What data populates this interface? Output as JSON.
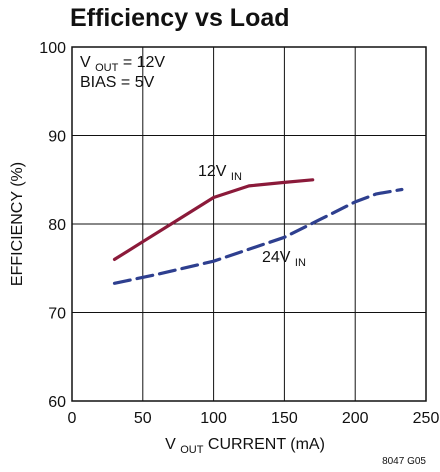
{
  "chart_data": {
    "type": "line",
    "title": "Efficiency vs Load",
    "xlabel": {
      "main": "V",
      "sub": "OUT",
      "rest": " CURRENT (mA)"
    },
    "ylabel": "EFFICIENCY (%)",
    "xlim": [
      0,
      250
    ],
    "ylim": [
      60,
      100
    ],
    "x_ticks": [
      0,
      50,
      100,
      150,
      200,
      250
    ],
    "y_ticks": [
      60,
      70,
      80,
      90,
      100
    ],
    "grid": true,
    "annotation_lines": [
      {
        "main": "V",
        "sub": "OUT",
        "rest": " = 12V"
      },
      {
        "main": "BIAS = 5V",
        "sub": "",
        "rest": ""
      }
    ],
    "series": [
      {
        "name": {
          "main": "12V",
          "sub": "IN"
        },
        "color": "#8b1a3a",
        "style": "solid",
        "points": [
          [
            30,
            76.0
          ],
          [
            50,
            78.0
          ],
          [
            75,
            80.5
          ],
          [
            100,
            83.0
          ],
          [
            125,
            84.3
          ],
          [
            150,
            84.7
          ],
          [
            170,
            85.0
          ]
        ]
      },
      {
        "name": {
          "main": "24V",
          "sub": "IN"
        },
        "color": "#2e3f8f",
        "style": "dashed",
        "points": [
          [
            30,
            73.3
          ],
          [
            60,
            74.3
          ],
          [
            100,
            75.8
          ],
          [
            150,
            78.5
          ],
          [
            175,
            80.5
          ],
          [
            200,
            82.5
          ],
          [
            215,
            83.4
          ],
          [
            233,
            83.9
          ]
        ]
      }
    ],
    "figure_id": "8047 G05"
  }
}
